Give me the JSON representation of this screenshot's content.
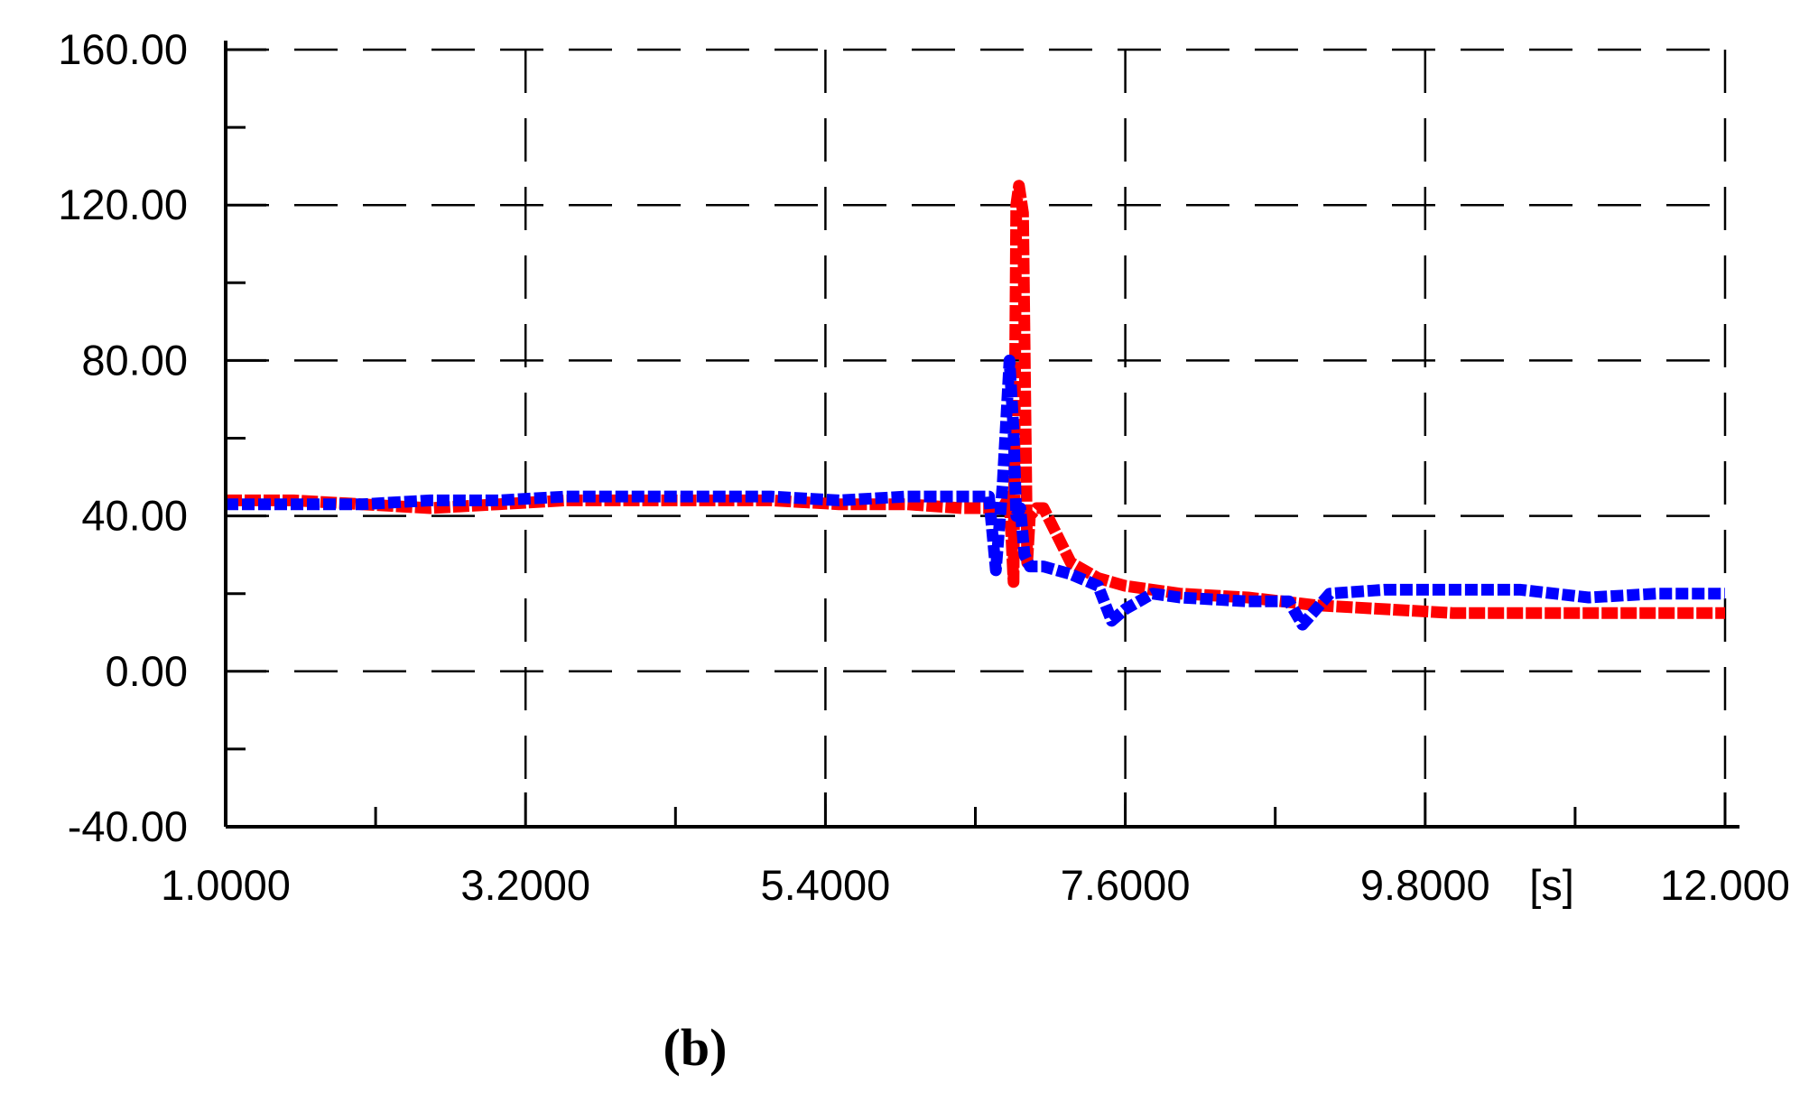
{
  "panel_label": "(b)",
  "chart_data": {
    "type": "line",
    "title": "",
    "xlabel": "",
    "ylabel": "",
    "x_unit_label": "[s]",
    "xlim": [
      1.0,
      12.0
    ],
    "ylim": [
      -40.0,
      160.0
    ],
    "x_ticks": [
      1.0,
      3.2,
      5.4,
      7.6,
      9.8,
      12.0
    ],
    "x_tick_labels": [
      "1.0000",
      "3.2000",
      "5.4000",
      "7.6000",
      "9.8000",
      "12.000"
    ],
    "x_minor_ticks": [
      2.1,
      4.3,
      6.5,
      8.7,
      10.9
    ],
    "y_ticks": [
      -40,
      0,
      40,
      80,
      120,
      160
    ],
    "y_tick_labels": [
      "-40.00",
      "0.00",
      "40.00",
      "80.00",
      "120.00",
      "160.00"
    ],
    "y_minor_ticks": [
      -20,
      20,
      60,
      100,
      140
    ],
    "grid": true,
    "grid_style": "dashed",
    "legend": "none",
    "series": [
      {
        "color": "#ff0000",
        "x": [
          1.0,
          1.5,
          2.0,
          2.5,
          3.0,
          3.5,
          4.0,
          4.5,
          5.0,
          5.5,
          6.0,
          6.4,
          6.7,
          6.75,
          6.78,
          6.8,
          6.82,
          6.85,
          6.88,
          6.9,
          6.95,
          7.0,
          7.1,
          7.2,
          7.4,
          7.6,
          8.0,
          8.5,
          9.0,
          9.5,
          10.0,
          10.5,
          11.0,
          11.5,
          12.0
        ],
        "y": [
          44,
          44,
          43,
          42,
          43,
          44,
          44,
          44,
          44,
          43,
          43,
          42,
          42,
          45,
          23,
          120,
          125,
          118,
          28,
          40,
          42,
          42,
          35,
          28,
          24,
          22,
          20,
          19,
          17,
          16,
          15,
          15,
          15,
          15,
          15
        ]
      },
      {
        "color": "#0000ff",
        "x": [
          1.0,
          1.5,
          2.0,
          2.5,
          3.0,
          3.5,
          4.0,
          4.5,
          5.0,
          5.5,
          6.0,
          6.4,
          6.6,
          6.65,
          6.7,
          6.75,
          6.78,
          6.8,
          6.83,
          6.86,
          6.9,
          7.0,
          7.2,
          7.4,
          7.5,
          7.6,
          7.8,
          8.0,
          8.5,
          8.8,
          8.9,
          9.1,
          9.5,
          10.0,
          10.5,
          11.0,
          11.5,
          12.0
        ],
        "y": [
          43,
          43,
          43,
          44,
          44,
          45,
          45,
          45,
          45,
          44,
          45,
          45,
          45,
          26,
          48,
          80,
          62,
          40,
          42,
          30,
          27,
          27,
          25,
          22,
          13,
          16,
          20,
          19,
          18,
          18,
          12,
          20,
          21,
          21,
          21,
          19,
          20,
          20
        ]
      }
    ]
  }
}
